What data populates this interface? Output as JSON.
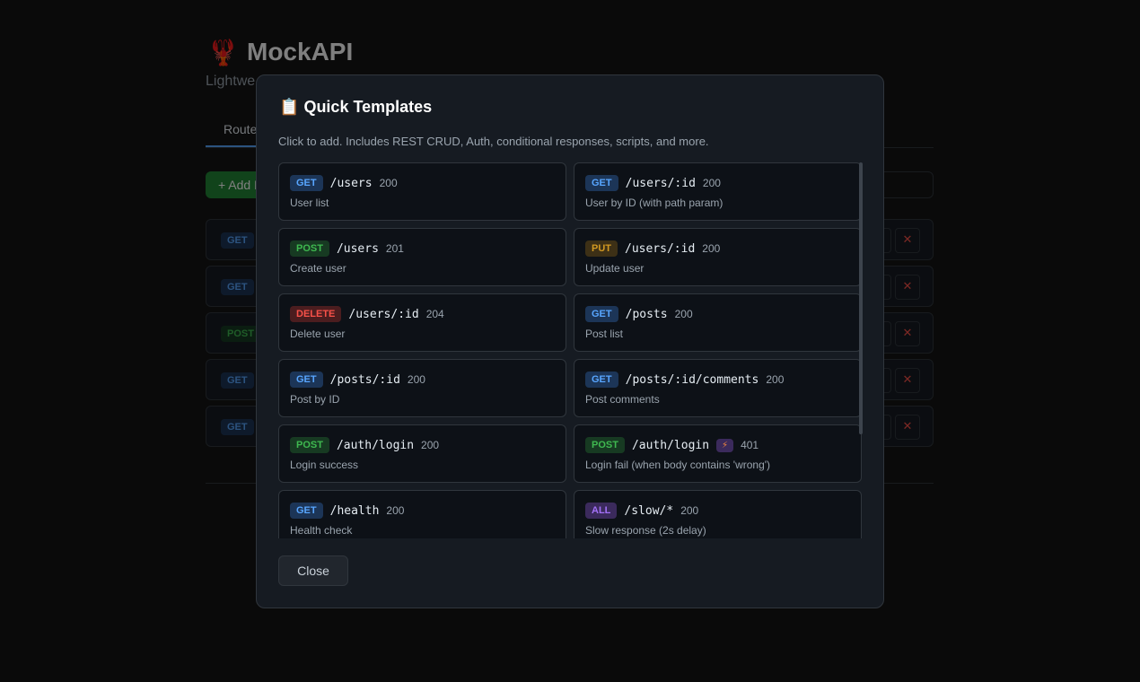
{
  "header": {
    "icon": "🦞",
    "title": "MockAPI",
    "subtitle": "Lightwe"
  },
  "tabs": [
    "Route"
  ],
  "add_button": "+ Add F",
  "routes": [
    {
      "method": "GET"
    },
    {
      "method": "GET"
    },
    {
      "method": "POST"
    },
    {
      "method": "GET"
    },
    {
      "method": "GET"
    }
  ],
  "route_delete": "✕",
  "modal": {
    "icon": "📋",
    "title": "Quick Templates",
    "description": "Click to add. Includes REST CRUD, Auth, conditional responses, scripts, and more.",
    "templates": [
      {
        "method": "GET",
        "path": "/users",
        "status": "200",
        "description": "User list"
      },
      {
        "method": "GET",
        "path": "/users/:id",
        "status": "200",
        "description": "User by ID (with path param)"
      },
      {
        "method": "POST",
        "path": "/users",
        "status": "201",
        "description": "Create user"
      },
      {
        "method": "PUT",
        "path": "/users/:id",
        "status": "200",
        "description": "Update user"
      },
      {
        "method": "DELETE",
        "path": "/users/:id",
        "status": "204",
        "description": "Delete user"
      },
      {
        "method": "GET",
        "path": "/posts",
        "status": "200",
        "description": "Post list"
      },
      {
        "method": "GET",
        "path": "/posts/:id",
        "status": "200",
        "description": "Post by ID"
      },
      {
        "method": "GET",
        "path": "/posts/:id/comments",
        "status": "200",
        "description": "Post comments"
      },
      {
        "method": "POST",
        "path": "/auth/login",
        "status": "200",
        "description": "Login success"
      },
      {
        "method": "POST",
        "path": "/auth/login",
        "flag": "⚡",
        "status": "401",
        "description": "Login fail (when body contains 'wrong')"
      },
      {
        "method": "GET",
        "path": "/health",
        "status": "200",
        "description": "Health check"
      },
      {
        "method": "ALL",
        "path": "/slow/*",
        "status": "200",
        "description": "Slow response (2s delay)"
      }
    ],
    "close": "Close"
  }
}
